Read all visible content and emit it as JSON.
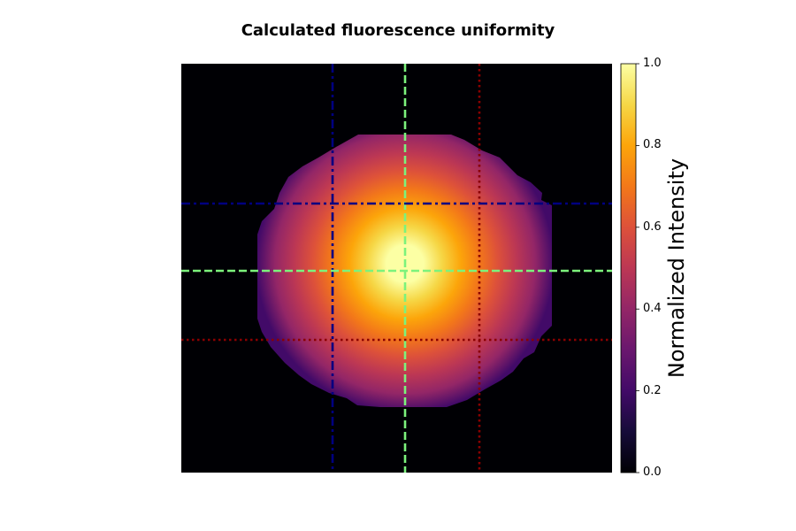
{
  "chart_data": {
    "type": "heatmap",
    "title": "Calculated fluorescence uniformity",
    "xlabel": "",
    "ylabel": "",
    "colormap": "inferno",
    "colorbar": {
      "label": "Normalized Intensity",
      "min": 0.0,
      "max": 1.0,
      "ticks": [
        "0.0",
        "0.2",
        "0.4",
        "0.6",
        "0.8",
        "1.0"
      ]
    },
    "intensity_model": {
      "peak_value": 1.0,
      "edge_value": 0.2,
      "background_value": 0.0,
      "shape": "radial falloff within a clipped disc"
    },
    "axes_visible": false,
    "grid": false,
    "line_profiles": [
      {
        "orientation": "vertical",
        "style": "dash-dot",
        "color": "#000080"
      },
      {
        "orientation": "vertical",
        "style": "dashed",
        "color": "#7CF27C"
      },
      {
        "orientation": "vertical",
        "style": "dotted",
        "color": "#8B0000"
      },
      {
        "orientation": "horizontal",
        "style": "dash-dot",
        "color": "#000080"
      },
      {
        "orientation": "horizontal",
        "style": "dashed",
        "color": "#7CF27C"
      },
      {
        "orientation": "horizontal",
        "style": "dotted",
        "color": "#8B0000"
      }
    ]
  }
}
